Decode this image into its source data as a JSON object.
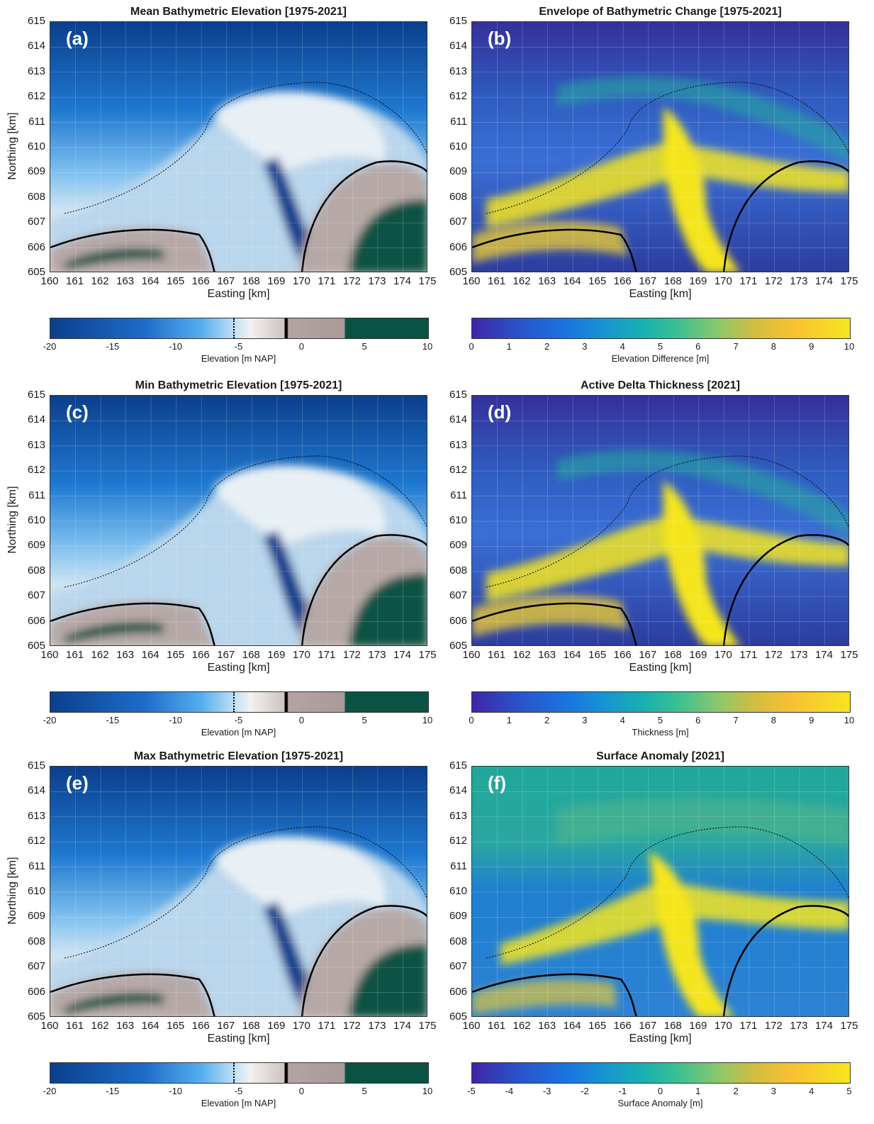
{
  "panels": [
    {
      "id": "a",
      "letter": "(a)",
      "title": "Mean Bathymetric Elevation [1975-2021]",
      "kind": "elev",
      "cbar_label": "Elevation [m NAP]",
      "show_ylabel": true
    },
    {
      "id": "b",
      "letter": "(b)",
      "title": "Envelope of Bathymetric Change [1975-2021]",
      "kind": "par",
      "cbar_label": "Elevation Difference [m]",
      "show_ylabel": false
    },
    {
      "id": "c",
      "letter": "(c)",
      "title": "Min Bathymetric Elevation  [1975-2021]",
      "kind": "elev",
      "cbar_label": "Elevation [m NAP]",
      "show_ylabel": true
    },
    {
      "id": "d",
      "letter": "(d)",
      "title": "Active Delta Thickness  [2021]",
      "kind": "par",
      "cbar_label": "Thickness [m]",
      "show_ylabel": false
    },
    {
      "id": "e",
      "letter": "(e)",
      "title": "Max Bathymetric Elevation  [1975-2021]",
      "kind": "elev",
      "cbar_label": "Elevation [m NAP]",
      "show_ylabel": true
    },
    {
      "id": "f",
      "letter": "(f)",
      "title": "Surface Anomaly [2021]",
      "kind": "anom",
      "cbar_label": "Surface Anomaly [m]",
      "show_ylabel": false
    }
  ],
  "axes": {
    "xlabel": "Easting [km]",
    "ylabel": "Northing [km]",
    "x_ticks": [
      "160",
      "161",
      "162",
      "163",
      "164",
      "165",
      "166",
      "167",
      "168",
      "169",
      "170",
      "171",
      "172",
      "173",
      "174",
      "175"
    ],
    "y_ticks": [
      "615",
      "614",
      "613",
      "612",
      "611",
      "610",
      "609",
      "608",
      "607",
      "606",
      "605"
    ]
  },
  "colorbars": {
    "elev": {
      "ticks": [
        "-20",
        "-15",
        "-10",
        "-5",
        "0",
        "5",
        "10"
      ],
      "range": [
        -20,
        10
      ]
    },
    "par": {
      "ticks": [
        "0",
        "1",
        "2",
        "3",
        "4",
        "5",
        "6",
        "7",
        "8",
        "9",
        "10"
      ],
      "range": [
        0,
        10
      ]
    },
    "anom": {
      "ticks": [
        "-5",
        "-4",
        "-3",
        "-2",
        "-1",
        "0",
        "1",
        "2",
        "3",
        "4",
        "5"
      ],
      "range": [
        -5,
        5
      ]
    }
  },
  "colors": {
    "deep": "#0b3f8c",
    "mid_blue": "#1e78d0",
    "light_blue": "#7fc0ef",
    "pale": "#e8f0f5",
    "sand": "#b6a8a6",
    "dark_green": "#0a5244",
    "parula_low": "#3a2f9e",
    "parula_mid": "#23a6a0",
    "parula_high": "#f5e51e",
    "contour": "#000000"
  }
}
